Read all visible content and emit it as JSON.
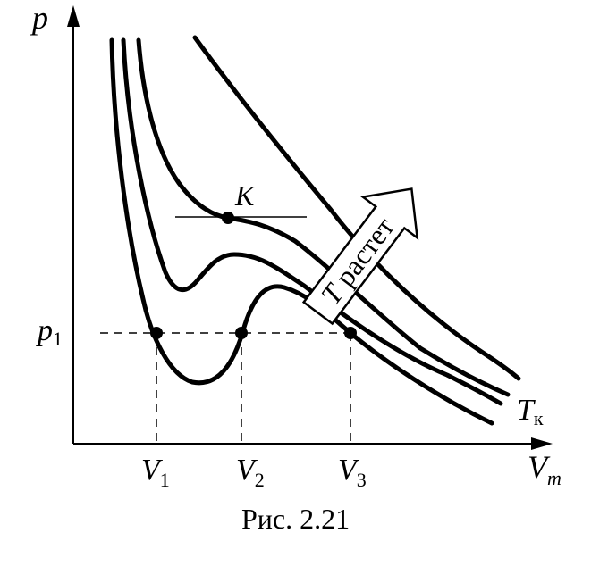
{
  "axes": {
    "y_label": "p",
    "x_label_main": "V",
    "x_label_sub": "m"
  },
  "points": {
    "critical": "K",
    "pressure_main": "p",
    "pressure_sub": "1",
    "v1_main": "V",
    "v1_sub": "1",
    "v2_main": "V",
    "v2_sub": "2",
    "v3_main": "V",
    "v3_sub": "3"
  },
  "curves": {
    "critical_temp_main": "T",
    "critical_temp_sub": "к"
  },
  "arrow": {
    "label_T": "T",
    "label_text": " растет"
  },
  "caption": "Рис. 2.21"
}
